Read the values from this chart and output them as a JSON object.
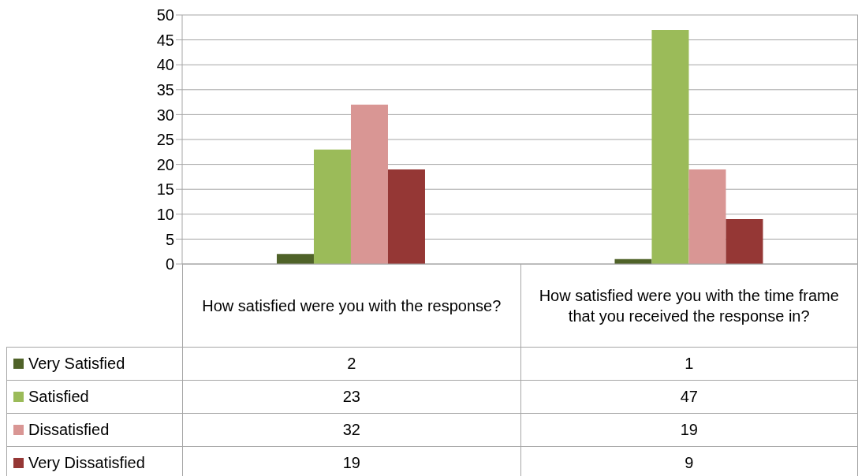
{
  "chart_data": {
    "type": "bar",
    "categories": [
      "How satisfied were you with the response?",
      "How satisfied were you with the time frame that you received the response in?"
    ],
    "series": [
      {
        "name": "Very Satisfied",
        "color": "#4f6228",
        "values": [
          2,
          1
        ]
      },
      {
        "name": "Satisfied",
        "color": "#9bbb59",
        "values": [
          23,
          47
        ]
      },
      {
        "name": "Dissatisfied",
        "color": "#d99694",
        "values": [
          32,
          19
        ]
      },
      {
        "name": "Very Dissatisfied",
        "color": "#953735",
        "values": [
          19,
          9
        ]
      }
    ],
    "ylim": [
      0,
      50
    ],
    "yticks": [
      0,
      5,
      10,
      15,
      20,
      25,
      30,
      35,
      40,
      45,
      50
    ],
    "grid": "y",
    "legend": "bottom left",
    "data_labels": true
  }
}
